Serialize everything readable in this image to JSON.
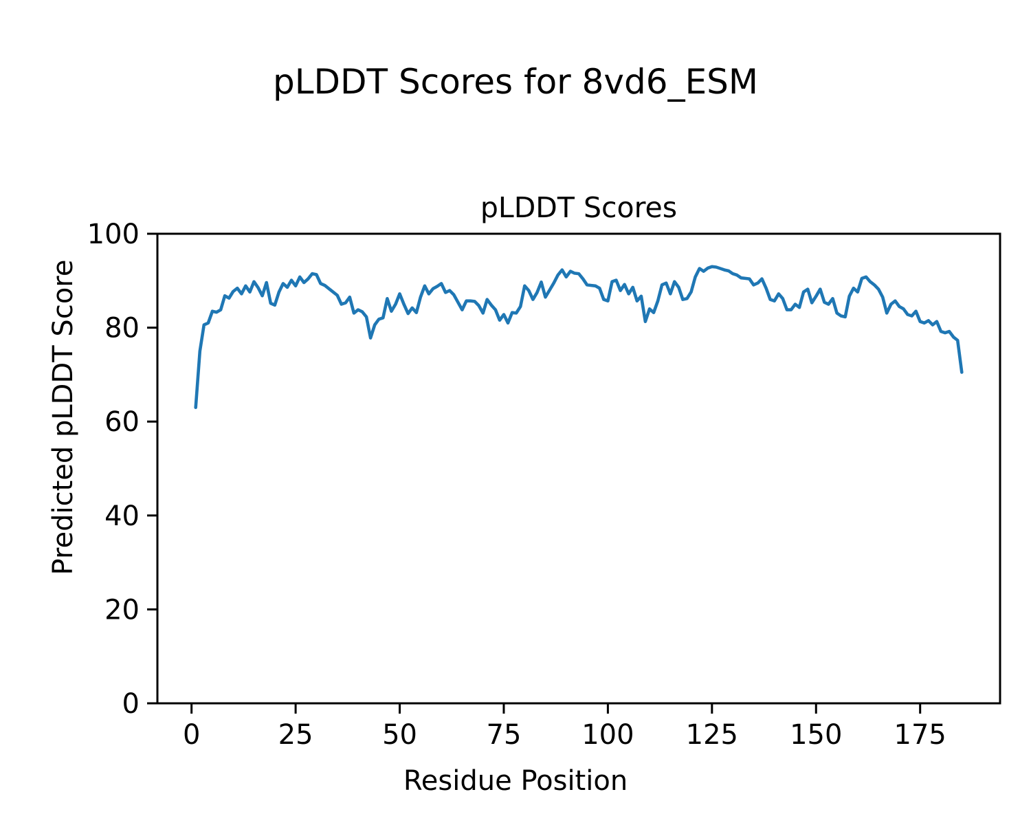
{
  "figure": {
    "suptitle": "pLDDT Scores for 8vd6_ESM",
    "axes_title": "pLDDT Scores",
    "xlabel": "Residue Position",
    "ylabel": "Predicted pLDDT Score"
  },
  "style": {
    "line_color": "#1f77b4",
    "axis_color": "#000000",
    "background_color": "#ffffff"
  },
  "chart_data": {
    "type": "line",
    "title": "pLDDT Scores",
    "xlabel": "Residue Position",
    "ylabel": "Predicted pLDDT Score",
    "xlim": [
      -8.2,
      194.2
    ],
    "ylim": [
      0,
      100
    ],
    "x_ticks": [
      0,
      25,
      50,
      75,
      100,
      125,
      150,
      175
    ],
    "y_ticks": [
      0,
      20,
      40,
      60,
      80,
      100
    ],
    "grid": false,
    "legend": "none",
    "x_start": 1,
    "x_step": 1,
    "series_name": "pLDDT",
    "values": [
      63.0,
      75.0,
      80.6,
      81.0,
      83.5,
      83.3,
      83.8,
      86.8,
      86.3,
      87.7,
      88.4,
      87.2,
      88.9,
      87.6,
      89.8,
      88.5,
      86.8,
      89.6,
      85.2,
      84.8,
      87.6,
      89.4,
      88.6,
      90.1,
      88.9,
      90.8,
      89.6,
      90.4,
      91.5,
      91.3,
      89.4,
      89.0,
      88.3,
      87.6,
      86.9,
      85.0,
      85.3,
      86.5,
      83.1,
      83.8,
      83.4,
      82.3,
      77.8,
      80.6,
      81.8,
      82.1,
      86.2,
      83.5,
      85.0,
      87.2,
      85.0,
      83.0,
      84.2,
      83.2,
      86.5,
      88.9,
      87.2,
      88.3,
      88.8,
      89.4,
      87.5,
      87.9,
      87.0,
      85.4,
      83.8,
      85.7,
      85.7,
      85.6,
      84.7,
      83.1,
      86.0,
      84.8,
      83.8,
      81.6,
      82.8,
      81.0,
      83.2,
      83.1,
      84.5,
      88.9,
      87.9,
      86.0,
      87.5,
      89.7,
      86.5,
      88.0,
      89.5,
      91.2,
      92.3,
      90.8,
      92.0,
      91.6,
      91.5,
      90.4,
      89.1,
      89.0,
      88.9,
      88.4,
      86.0,
      85.7,
      89.8,
      90.1,
      87.9,
      89.2,
      87.2,
      88.6,
      85.7,
      86.7,
      81.3,
      84.0,
      83.2,
      85.7,
      89.1,
      89.5,
      87.2,
      89.8,
      88.6,
      86.0,
      86.2,
      87.6,
      90.8,
      92.6,
      92.0,
      92.7,
      93.0,
      92.9,
      92.6,
      92.3,
      92.1,
      91.5,
      91.2,
      90.6,
      90.5,
      90.4,
      89.1,
      89.5,
      90.4,
      88.4,
      86.0,
      85.7,
      87.2,
      86.2,
      83.8,
      83.8,
      85.0,
      84.3,
      87.6,
      88.2,
      85.3,
      86.7,
      88.2,
      85.4,
      85.0,
      86.2,
      83.1,
      82.5,
      82.3,
      86.7,
      88.4,
      87.6,
      90.5,
      90.8,
      89.8,
      89.1,
      88.2,
      86.5,
      83.1,
      85.0,
      85.7,
      84.5,
      84.0,
      82.8,
      82.5,
      83.5,
      81.3,
      81.0,
      81.5,
      80.6,
      81.3,
      79.2,
      78.9,
      79.2,
      78.0,
      77.3,
      70.5
    ]
  }
}
